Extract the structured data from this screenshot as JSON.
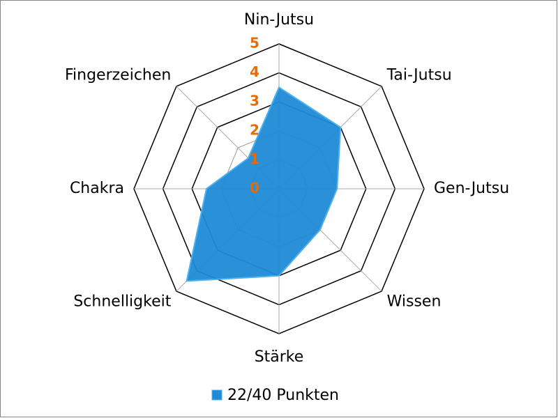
{
  "chart_data": {
    "type": "radar",
    "categories": [
      "Nin-Jutsu",
      "Tai-Jutsu",
      "Gen-Jutsu",
      "Wissen",
      "Stärke",
      "Schnelligkeit",
      "Chakra",
      "Fingerzeichen"
    ],
    "series": [
      {
        "name": "22/40 Punkten",
        "color": "#1f8ad6",
        "values": [
          3.5,
          3,
          2,
          2,
          3,
          4.5,
          2.5,
          1.5
        ]
      }
    ],
    "rlim": [
      0,
      5
    ],
    "rticks": [
      0,
      1,
      2,
      3,
      4,
      5
    ],
    "tick_color": "#e46c0a",
    "legend": "bottom"
  }
}
